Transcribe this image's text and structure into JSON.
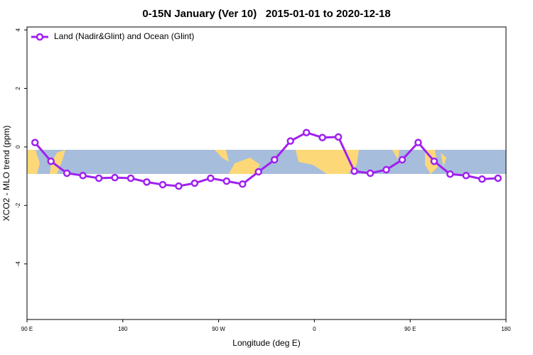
{
  "chart_data": {
    "type": "line",
    "title": "0-15N January (Ver 10)   2015-01-01 to 2020-12-18",
    "xlabel": "Longitude (deg E)",
    "ylabel": "XCO2 - MLO trend (ppm)",
    "xlim": [
      90,
      540
    ],
    "ylim": [
      -5.9,
      4.1
    ],
    "xticks": [
      {
        "value": 90,
        "label": "90 E"
      },
      180,
      {
        "value": 270,
        "label": "90 W"
      },
      {
        "value": 360,
        "label": "0"
      },
      {
        "value": 450,
        "label": "90 E"
      },
      {
        "value": 540,
        "label": "180"
      }
    ],
    "yticks": [
      -4,
      -2,
      0,
      2,
      4
    ],
    "legend": "top-left",
    "x": [
      97.5,
      112.5,
      127.5,
      142.5,
      157.5,
      172.5,
      187.5,
      202.5,
      217.5,
      232.5,
      247.5,
      262.5,
      277.5,
      292.5,
      307.5,
      322.5,
      337.5,
      352.5,
      367.5,
      382.5,
      397.5,
      412.5,
      427.5,
      442.5,
      457.5,
      472.5,
      487.5,
      502.5,
      517.5,
      532.5
    ],
    "series": [
      {
        "name": "Land (Nadir&Glint) and Ocean (Glint)",
        "color": "#a020f0",
        "values": [
          0.15,
          -0.49,
          -0.9,
          -0.98,
          -1.07,
          -1.05,
          -1.07,
          -1.2,
          -1.29,
          -1.34,
          -1.24,
          -1.07,
          -1.17,
          -1.27,
          -0.85,
          -0.44,
          0.2,
          0.49,
          0.32,
          0.34,
          -0.83,
          -0.9,
          -0.78,
          -0.44,
          0.15,
          -0.49,
          -0.93,
          -0.98,
          -1.1,
          -1.07
        ]
      }
    ]
  }
}
